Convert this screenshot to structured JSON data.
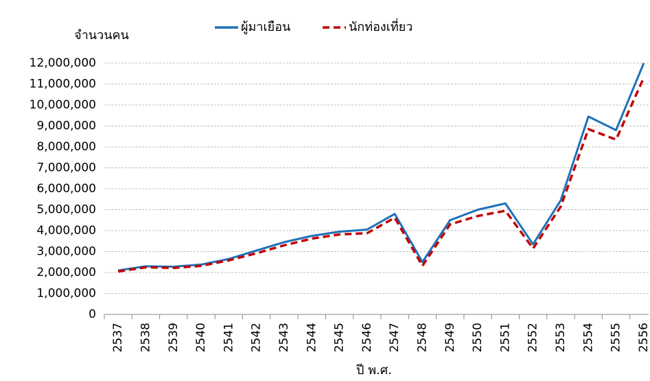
{
  "chart_data": {
    "type": "line",
    "y_axis_label": "จำนวนคน",
    "x_axis_label": "ปี พ.ศ.",
    "legend": "top",
    "grid": true,
    "categories": [
      "2537",
      "2538",
      "2539",
      "2540",
      "2541",
      "2542",
      "2543",
      "2544",
      "2545",
      "2546",
      "2547",
      "2548",
      "2549",
      "2550",
      "2551",
      "2552",
      "2553",
      "2554",
      "2555",
      "2556"
    ],
    "series": [
      {
        "name": "ผู้มาเยือน",
        "color": "#1f70b8",
        "line_style": "solid",
        "values": [
          2100000,
          2300000,
          2280000,
          2380000,
          2650000,
          3050000,
          3450000,
          3750000,
          3950000,
          4050000,
          4800000,
          2500000,
          4500000,
          5000000,
          5300000,
          3350000,
          5450000,
          9450000,
          8800000,
          12000000
        ]
      },
      {
        "name": "นักท่องเที่ยว",
        "color": "#c00000",
        "line_style": "dashed",
        "values": [
          2050000,
          2250000,
          2220000,
          2320000,
          2580000,
          2920000,
          3300000,
          3620000,
          3820000,
          3880000,
          4620000,
          2320000,
          4300000,
          4700000,
          4950000,
          3150000,
          5150000,
          8850000,
          8350000,
          11300000
        ]
      }
    ],
    "ylim": [
      0,
      12000000
    ],
    "yticks": [
      0,
      {
        "value": 1000000,
        "label": "1,000,000"
      },
      {
        "value": 2000000,
        "label": "2,000,000"
      },
      {
        "value": 3000000,
        "label": "3,000,000"
      },
      {
        "value": 4000000,
        "label": "4,000,000"
      },
      {
        "value": 5000000,
        "label": "5,000,000"
      },
      {
        "value": 6000000,
        "label": "6,000,000"
      },
      {
        "value": 7000000,
        "label": "7,000,000"
      },
      {
        "value": 8000000,
        "label": "8,000,000"
      },
      {
        "value": 9000000,
        "label": "9,000,000"
      },
      {
        "value": 10000000,
        "label": "10,000,000"
      },
      {
        "value": 11000000,
        "label": "11,000,000"
      },
      {
        "value": 12000000,
        "label": "12,000,000"
      }
    ]
  }
}
